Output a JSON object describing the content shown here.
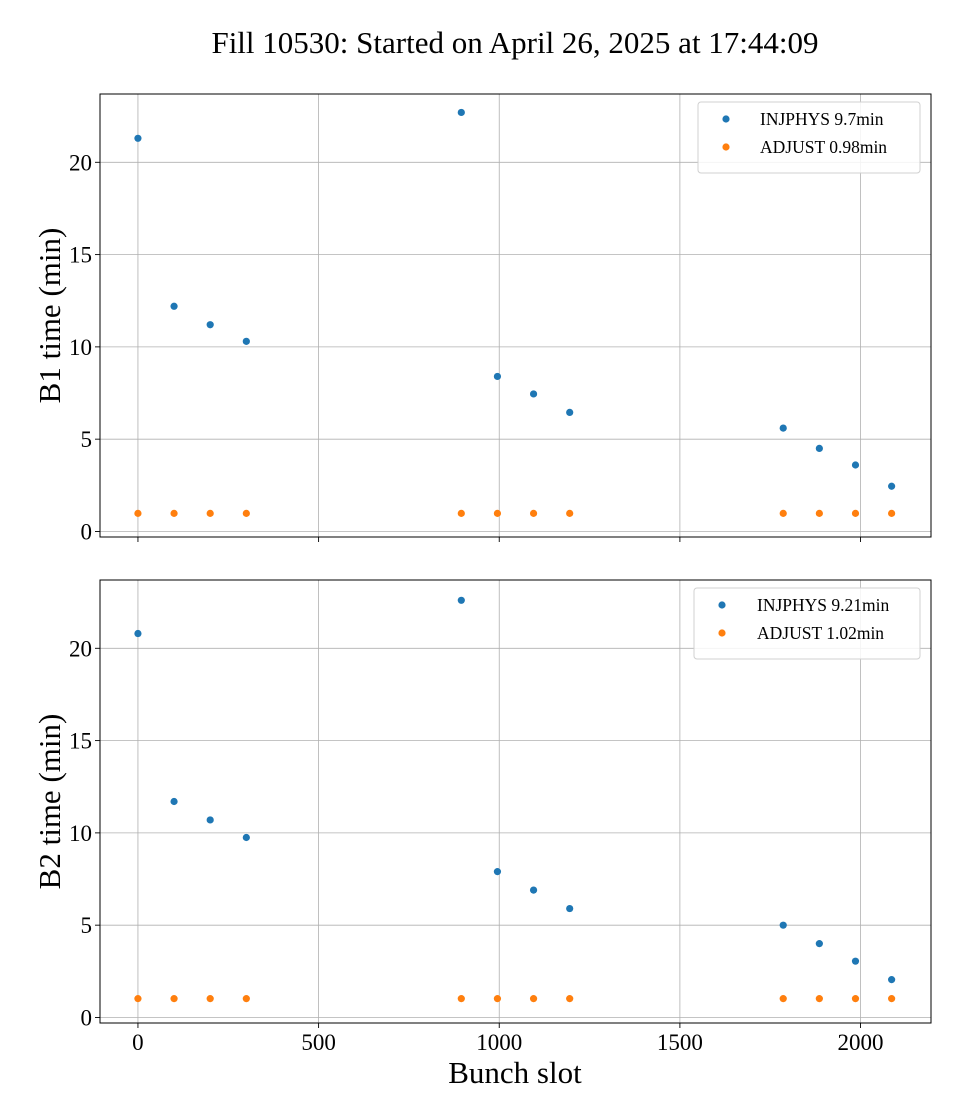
{
  "title": "Fill 10530: Started on April 26, 2025 at 17:44:09",
  "xlabel": "Bunch slot",
  "colors": {
    "injphys": "#1f77b4",
    "adjust": "#ff7f0e",
    "grid": "#b0b0b0"
  },
  "chart_data": [
    {
      "type": "scatter",
      "ylabel": "B1 time (min)",
      "xlim": [
        -105,
        2195
      ],
      "ylim": [
        -0.3,
        23.7
      ],
      "xticks": [
        0,
        500,
        1000,
        1500,
        2000
      ],
      "yticks": [
        0,
        5,
        10,
        15,
        20
      ],
      "show_xticklabels": false,
      "grid": true,
      "legend_position": "top-right",
      "series": [
        {
          "name": "INJPHYS 9.7min",
          "color": "#1f77b4",
          "x": [
            0,
            100,
            200,
            300,
            895,
            995,
            1095,
            1195,
            1786,
            1886,
            1986,
            2086
          ],
          "y": [
            21.3,
            12.2,
            11.2,
            10.3,
            22.7,
            8.4,
            7.45,
            6.45,
            5.6,
            4.5,
            3.6,
            2.45
          ]
        },
        {
          "name": "ADJUST 0.98min",
          "color": "#ff7f0e",
          "x": [
            0,
            100,
            200,
            300,
            895,
            995,
            1095,
            1195,
            1786,
            1886,
            1986,
            2086
          ],
          "y": [
            0.98,
            0.98,
            0.98,
            0.98,
            0.98,
            0.98,
            0.98,
            0.98,
            0.98,
            0.98,
            0.98,
            0.98
          ]
        }
      ]
    },
    {
      "type": "scatter",
      "ylabel": "B2 time (min)",
      "xlim": [
        -105,
        2195
      ],
      "ylim": [
        -0.3,
        23.7
      ],
      "xticks": [
        0,
        500,
        1000,
        1500,
        2000
      ],
      "yticks": [
        0,
        5,
        10,
        15,
        20
      ],
      "show_xticklabels": true,
      "grid": true,
      "legend_position": "top-right",
      "series": [
        {
          "name": "INJPHYS 9.21min",
          "color": "#1f77b4",
          "x": [
            0,
            100,
            200,
            300,
            895,
            995,
            1095,
            1195,
            1786,
            1886,
            1986,
            2086
          ],
          "y": [
            20.8,
            11.7,
            10.7,
            9.75,
            22.6,
            7.9,
            6.9,
            5.9,
            5.0,
            4.0,
            3.05,
            2.05
          ]
        },
        {
          "name": "ADJUST 1.02min",
          "color": "#ff7f0e",
          "x": [
            0,
            100,
            200,
            300,
            895,
            995,
            1095,
            1195,
            1786,
            1886,
            1986,
            2086
          ],
          "y": [
            1.02,
            1.02,
            1.02,
            1.02,
            1.02,
            1.02,
            1.02,
            1.02,
            1.02,
            1.02,
            1.02,
            1.02
          ]
        }
      ]
    }
  ]
}
